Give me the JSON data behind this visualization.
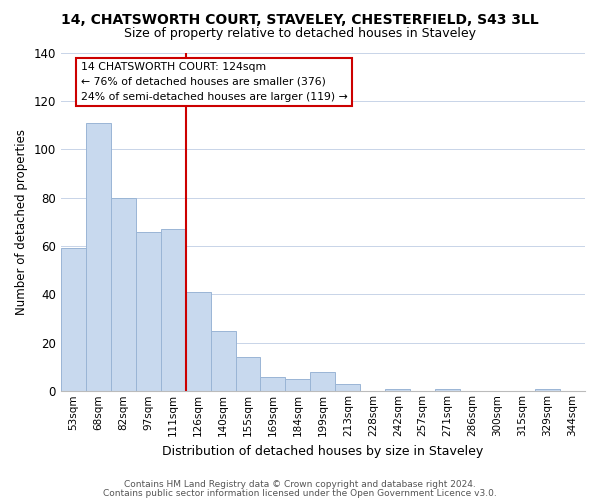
{
  "title": "14, CHATSWORTH COURT, STAVELEY, CHESTERFIELD, S43 3LL",
  "subtitle": "Size of property relative to detached houses in Staveley",
  "xlabel": "Distribution of detached houses by size in Staveley",
  "ylabel": "Number of detached properties",
  "bin_labels": [
    "53sqm",
    "68sqm",
    "82sqm",
    "97sqm",
    "111sqm",
    "126sqm",
    "140sqm",
    "155sqm",
    "169sqm",
    "184sqm",
    "199sqm",
    "213sqm",
    "228sqm",
    "242sqm",
    "257sqm",
    "271sqm",
    "286sqm",
    "300sqm",
    "315sqm",
    "329sqm",
    "344sqm"
  ],
  "bar_heights": [
    59,
    111,
    80,
    66,
    67,
    41,
    25,
    14,
    6,
    5,
    8,
    3,
    0,
    1,
    0,
    1,
    0,
    0,
    0,
    1,
    0
  ],
  "bar_color": "#c8d9ee",
  "bar_edge_color": "#9ab5d5",
  "highlight_index": 5,
  "highlight_line_color": "#cc0000",
  "annotation_text": "14 CHATSWORTH COURT: 124sqm\n← 76% of detached houses are smaller (376)\n24% of semi-detached houses are larger (119) →",
  "annotation_box_color": "#ffffff",
  "annotation_box_edge": "#cc0000",
  "ylim": [
    0,
    140
  ],
  "yticks": [
    0,
    20,
    40,
    60,
    80,
    100,
    120,
    140
  ],
  "footer_line1": "Contains HM Land Registry data © Crown copyright and database right 2024.",
  "footer_line2": "Contains public sector information licensed under the Open Government Licence v3.0.",
  "background_color": "#ffffff",
  "grid_color": "#c8d4e8"
}
